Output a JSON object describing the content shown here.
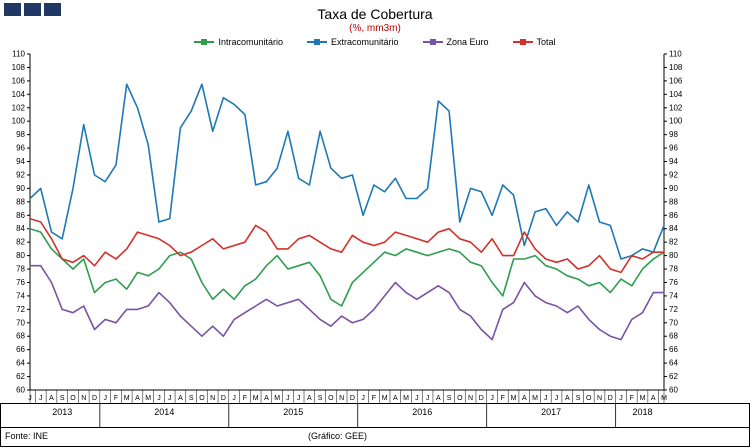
{
  "logo": {
    "square_color": "#203864",
    "square_count": 3
  },
  "header": {
    "title": "Taxa de Cobertura",
    "subtitle": "(%, mm3m)"
  },
  "footer": {
    "source": "Fonte: INE",
    "credit": "(Gráfico: GEE)"
  },
  "chart_data": {
    "type": "line",
    "title": "Taxa de Cobertura",
    "subtitle": "(%, mm3m)",
    "ylim": [
      60,
      110
    ],
    "ytick_step": 2,
    "grid": false,
    "legend_position": "top",
    "axis_color": "#000000",
    "x_months": [
      "J",
      "J",
      "A",
      "S",
      "O",
      "N",
      "D",
      "J",
      "F",
      "M",
      "A",
      "M",
      "J",
      "J",
      "A",
      "S",
      "O",
      "N",
      "D",
      "J",
      "F",
      "M",
      "A",
      "M",
      "J",
      "J",
      "A",
      "S",
      "O",
      "N",
      "D",
      "J",
      "F",
      "M",
      "A",
      "M",
      "J",
      "J",
      "A",
      "S",
      "O",
      "N",
      "D",
      "J",
      "F",
      "M",
      "A",
      "M",
      "J",
      "J",
      "A",
      "S",
      "O",
      "N",
      "D",
      "J",
      "F",
      "M",
      "A",
      "M"
    ],
    "years": [
      {
        "label": "2013",
        "months": 7
      },
      {
        "label": "2014",
        "months": 12
      },
      {
        "label": "2015",
        "months": 12
      },
      {
        "label": "2016",
        "months": 12
      },
      {
        "label": "2017",
        "months": 12
      },
      {
        "label": "2018",
        "months": 5
      }
    ],
    "series": [
      {
        "name": "Intracomunitário",
        "color": "#2e9e4e",
        "values": [
          84,
          83.5,
          81,
          79.5,
          78,
          79.5,
          74.5,
          76,
          76.5,
          75,
          77.5,
          77,
          78,
          80,
          80.5,
          79.5,
          76,
          73.5,
          75,
          73.5,
          75.5,
          76.5,
          78.5,
          80,
          78,
          78.5,
          79,
          77,
          73.5,
          72.5,
          76,
          77.5,
          79,
          80.5,
          80,
          81,
          80.5,
          80,
          80.5,
          81,
          80.5,
          79,
          78.5,
          76,
          74,
          79.5,
          79.5,
          80,
          78.5,
          78,
          77,
          76.5,
          75.5,
          76,
          74.5,
          76.5,
          75.5,
          78,
          79.5,
          80.5
        ]
      },
      {
        "name": "Extracomunitário",
        "color": "#1f78b4",
        "values": [
          88.5,
          90,
          83.5,
          82.5,
          90,
          99.5,
          92,
          91,
          93.5,
          105.5,
          102,
          96.5,
          85,
          85.5,
          99,
          101.5,
          105.5,
          98.5,
          103.5,
          102.5,
          101,
          90.5,
          91,
          93,
          98.5,
          91.5,
          90.5,
          98.5,
          93,
          91.5,
          92,
          86,
          90.5,
          89.5,
          91.5,
          88.5,
          88.5,
          90,
          103,
          101.5,
          85,
          90,
          89.5,
          86,
          90.5,
          89,
          81.5,
          86.5,
          87,
          84.5,
          86.5,
          85,
          90.5,
          85,
          84.5,
          79.5,
          80,
          81,
          80.5,
          84.5
        ]
      },
      {
        "name": "Zona Euro",
        "color": "#7a52a5",
        "values": [
          78.5,
          78.5,
          76,
          72,
          71.5,
          72.5,
          69,
          70.5,
          70,
          72,
          72,
          72.5,
          74.5,
          73,
          71,
          69.5,
          68,
          69.5,
          68,
          70.5,
          71.5,
          72.5,
          73.5,
          72.5,
          73,
          73.5,
          72,
          70.5,
          69.5,
          71,
          70,
          70.5,
          72,
          74,
          76,
          74.5,
          73.5,
          74.5,
          75.5,
          74.5,
          72,
          71,
          69,
          67.5,
          72,
          73,
          76,
          74,
          73,
          72.5,
          71.5,
          72.5,
          70.5,
          69,
          68,
          67.5,
          70.5,
          71.5,
          74.5,
          74.5
        ]
      },
      {
        "name": "Total",
        "color": "#d3312a",
        "values": [
          85.5,
          85,
          82.5,
          79.5,
          79,
          80,
          78.5,
          80.5,
          79.5,
          81,
          83.5,
          83,
          82.5,
          81.5,
          80,
          80.5,
          81.5,
          82.5,
          81,
          81.5,
          82,
          84.5,
          83.5,
          81,
          81,
          82.5,
          83,
          82,
          81,
          80.5,
          83,
          82,
          81.5,
          82,
          83.5,
          83,
          82.5,
          82,
          83.5,
          84,
          82.5,
          82,
          80.5,
          82.5,
          80,
          80,
          83.5,
          81,
          79.5,
          79,
          79.5,
          78,
          78.5,
          80,
          78,
          77.5,
          80,
          79.5,
          80.5,
          80.5
        ]
      }
    ]
  }
}
